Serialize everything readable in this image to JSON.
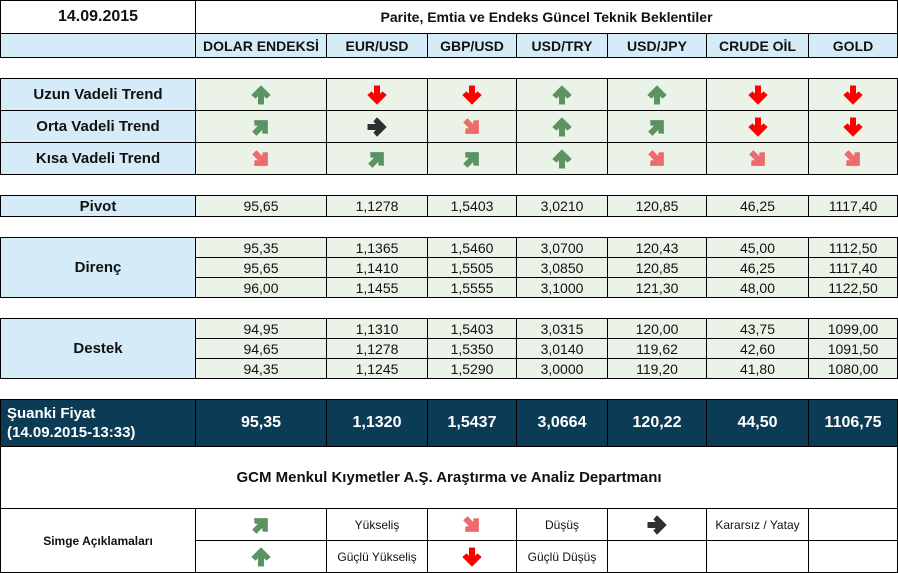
{
  "header": {
    "date": "14.09.2015",
    "title": "Parite, Emtia ve Endeks Güncel Teknik Beklentiler"
  },
  "columns": [
    "DOLAR ENDEKSİ",
    "EUR/USD",
    "GBP/USD",
    "USD/TRY",
    "USD/JPY",
    "CRUDE OİL",
    "GOLD"
  ],
  "colors": {
    "green": "#5b9363",
    "pink": "#ec6b6b",
    "red": "#ff0000",
    "dark": "#303030",
    "label_bg": "#d5ecf8",
    "cell_bg": "#ebf3e8",
    "price_bg": "#0c3b55"
  },
  "trends": [
    {
      "label": "Uzun Vadeli Trend",
      "arrows": [
        "strong-up",
        "strong-down",
        "strong-down",
        "strong-up",
        "strong-up",
        "strong-down",
        "strong-down"
      ]
    },
    {
      "label": "Orta Vadeli Trend",
      "arrows": [
        "up",
        "sideways",
        "down",
        "strong-up",
        "up",
        "strong-down",
        "strong-down"
      ]
    },
    {
      "label": "Kısa Vadeli Trend",
      "arrows": [
        "down",
        "up",
        "up",
        "strong-up",
        "down",
        "down",
        "down"
      ]
    }
  ],
  "pivot": {
    "label": "Pivot",
    "values": [
      "95,65",
      "1,1278",
      "1,5403",
      "3,0210",
      "120,85",
      "46,25",
      "1117,40"
    ]
  },
  "resistance": {
    "label": "Direnç",
    "rows": [
      [
        "95,35",
        "1,1365",
        "1,5460",
        "3,0700",
        "120,43",
        "45,00",
        "1112,50"
      ],
      [
        "95,65",
        "1,1410",
        "1,5505",
        "3,0850",
        "120,85",
        "46,25",
        "1117,40"
      ],
      [
        "96,00",
        "1,1455",
        "1,5555",
        "3,1000",
        "121,30",
        "48,00",
        "1122,50"
      ]
    ]
  },
  "support": {
    "label": "Destek",
    "rows": [
      [
        "94,95",
        "1,1310",
        "1,5403",
        "3,0315",
        "120,00",
        "43,75",
        "1099,00"
      ],
      [
        "94,65",
        "1,1278",
        "1,5350",
        "3,0140",
        "119,62",
        "42,60",
        "1091,50"
      ],
      [
        "94,35",
        "1,1245",
        "1,5290",
        "3,0000",
        "119,20",
        "41,80",
        "1080,00"
      ]
    ]
  },
  "current_price": {
    "label_line1": "Şuanki Fiyat",
    "label_line2": "(14.09.2015-13:33)",
    "values": [
      "95,35",
      "1,1320",
      "1,5437",
      "3,0664",
      "120,22",
      "44,50",
      "1106,75"
    ]
  },
  "footer": "GCM Menkul Kıymetler A.Ş. Araştırma ve Analiz Departmanı",
  "legend": {
    "title": "Simge Açıklamaları",
    "items": [
      {
        "arrow": "up",
        "label": "Yükseliş"
      },
      {
        "arrow": "down",
        "label": "Düşüş"
      },
      {
        "arrow": "sideways",
        "label": "Kararsız / Yatay"
      },
      {
        "arrow": "strong-up",
        "label": "Güçlü Yükseliş"
      },
      {
        "arrow": "strong-down",
        "label": "Güçlü Düşüş"
      }
    ]
  }
}
